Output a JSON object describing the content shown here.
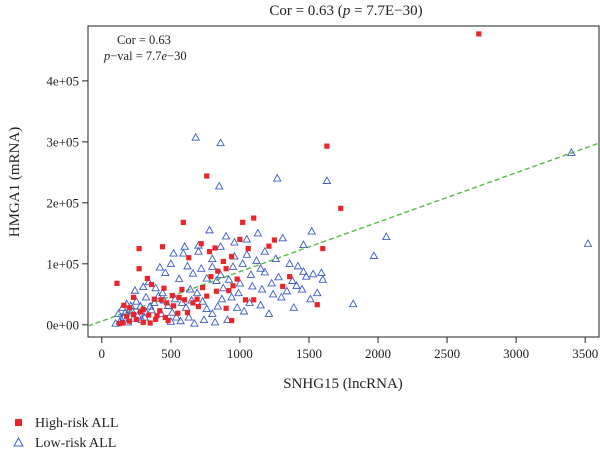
{
  "chart_data": {
    "type": "scatter",
    "title": "Cor = 0.63 (p = 7.7E−30)",
    "title_parts": {
      "prefix": "Cor = 0.63 (",
      "p": "p",
      "suffix": " = 7.7E−30)"
    },
    "annotation": {
      "line1": "Cor = 0.63",
      "line2_p": "p",
      "line2_mid": "−val = 7.7",
      "line2_e": "e",
      "line2_end": "−30"
    },
    "xlabel": "SNHG15 (lncRNA)",
    "ylabel": "HMGA1 (mRNA)",
    "xlim": [
      -100,
      3600
    ],
    "ylim": [
      -20000,
      490000
    ],
    "x_ticks": [
      0,
      500,
      1000,
      1500,
      2000,
      2500,
      3000,
      3500
    ],
    "x_tick_labels": [
      "0",
      "500",
      "1000",
      "1500",
      "2000",
      "2500",
      "3000",
      "3500"
    ],
    "y_ticks": [
      0,
      100000,
      200000,
      300000,
      400000
    ],
    "y_tick_labels": [
      "0e+00",
      "1e+05",
      "2e+05",
      "3e+05",
      "4e+05"
    ],
    "grid": false,
    "legend_position": "bottom-left",
    "trend_line": {
      "x": [
        -100,
        3600
      ],
      "y": [
        -2000,
        298000
      ],
      "color": "#55bb44",
      "style": "dashed"
    },
    "series": [
      {
        "name": "High-risk ALL",
        "marker": "square",
        "color": "#e8262a",
        "points": [
          [
            2730,
            477000
          ],
          [
            760,
            244000
          ],
          [
            1630,
            293000
          ],
          [
            1730,
            191000
          ],
          [
            1100,
            175000
          ],
          [
            1020,
            168000
          ],
          [
            590,
            168000
          ],
          [
            1210,
            129000
          ],
          [
            1600,
            125000
          ],
          [
            1000,
            140000
          ],
          [
            1250,
            139000
          ],
          [
            720,
            133000
          ],
          [
            820,
            126000
          ],
          [
            1060,
            125000
          ],
          [
            780,
            120000
          ],
          [
            940,
            112000
          ],
          [
            630,
            110000
          ],
          [
            880,
            104000
          ],
          [
            270,
            125000
          ],
          [
            440,
            128000
          ],
          [
            1360,
            79000
          ],
          [
            1310,
            63000
          ],
          [
            1040,
            41000
          ],
          [
            1100,
            41000
          ],
          [
            920,
            56000
          ],
          [
            1560,
            33000
          ],
          [
            270,
            92000
          ],
          [
            330,
            76000
          ],
          [
            110,
            68000
          ],
          [
            360,
            66000
          ],
          [
            580,
            58000
          ],
          [
            690,
            42000
          ],
          [
            760,
            47000
          ],
          [
            830,
            55000
          ],
          [
            900,
            27000
          ],
          [
            510,
            48000
          ],
          [
            470,
            36000
          ],
          [
            380,
            42000
          ],
          [
            230,
            45000
          ],
          [
            200,
            28000
          ],
          [
            160,
            32000
          ],
          [
            300,
            25000
          ],
          [
            340,
            16000
          ],
          [
            420,
            23000
          ],
          [
            390,
            9000
          ],
          [
            520,
            31000
          ],
          [
            600,
            41000
          ],
          [
            660,
            36000
          ],
          [
            730,
            61000
          ],
          [
            790,
            79000
          ],
          [
            840,
            88000
          ],
          [
            900,
            92000
          ],
          [
            950,
            64000
          ],
          [
            980,
            75000
          ],
          [
            450,
            60000
          ],
          [
            300,
            4000
          ],
          [
            250,
            9000
          ],
          [
            200,
            6000
          ],
          [
            180,
            14000
          ],
          [
            150,
            3000
          ],
          [
            230,
            17000
          ],
          [
            280,
            21000
          ],
          [
            350,
            3000
          ],
          [
            400,
            15000
          ],
          [
            460,
            12000
          ],
          [
            480,
            7000
          ],
          [
            550,
            19000
          ],
          [
            620,
            20000
          ],
          [
            700,
            30000
          ],
          [
            560,
            45000
          ],
          [
            430,
            41000
          ],
          [
            940,
            7000
          ],
          [
            130,
            2000
          ]
        ]
      },
      {
        "name": "Low-risk ALL",
        "marker": "triangle",
        "color": "#3b5bc8",
        "points": [
          [
            680,
            307000
          ],
          [
            860,
            298000
          ],
          [
            1630,
            236000
          ],
          [
            1270,
            240000
          ],
          [
            3400,
            282000
          ],
          [
            3520,
            133000
          ],
          [
            2060,
            144000
          ],
          [
            1970,
            113000
          ],
          [
            1820,
            34000
          ],
          [
            1590,
            85000
          ],
          [
            1460,
            87000
          ],
          [
            1390,
            28000
          ],
          [
            850,
            227000
          ],
          [
            1520,
            153000
          ],
          [
            1310,
            142000
          ],
          [
            1460,
            131000
          ],
          [
            1130,
            150000
          ],
          [
            1050,
            140000
          ],
          [
            960,
            135000
          ],
          [
            900,
            145000
          ],
          [
            780,
            155000
          ],
          [
            700,
            130000
          ],
          [
            600,
            128000
          ],
          [
            500,
            100000
          ],
          [
            520,
            117000
          ],
          [
            590,
            117000
          ],
          [
            700,
            120000
          ],
          [
            800,
            108000
          ],
          [
            860,
            128000
          ],
          [
            1180,
            120000
          ],
          [
            1260,
            108000
          ],
          [
            1360,
            100000
          ],
          [
            1420,
            96000
          ],
          [
            1480,
            79000
          ],
          [
            1530,
            83000
          ],
          [
            1600,
            74000
          ],
          [
            1120,
            105000
          ],
          [
            1020,
            100000
          ],
          [
            950,
            95000
          ],
          [
            1080,
            82000
          ],
          [
            1180,
            86000
          ],
          [
            1280,
            78000
          ],
          [
            1380,
            72000
          ],
          [
            1450,
            58000
          ],
          [
            1510,
            42000
          ],
          [
            1560,
            52000
          ],
          [
            1230,
            68000
          ],
          [
            1160,
            58000
          ],
          [
            1090,
            63000
          ],
          [
            1000,
            68000
          ],
          [
            940,
            45000
          ],
          [
            880,
            60000
          ],
          [
            830,
            72000
          ],
          [
            760,
            76000
          ],
          [
            660,
            84000
          ],
          [
            560,
            75000
          ],
          [
            460,
            85000
          ],
          [
            390,
            60000
          ],
          [
            320,
            45000
          ],
          [
            250,
            38000
          ],
          [
            200,
            24000
          ],
          [
            160,
            12000
          ],
          [
            130,
            5000
          ],
          [
            100,
            2000
          ],
          [
            120,
            18000
          ],
          [
            150,
            28000
          ],
          [
            180,
            34000
          ],
          [
            220,
            22000
          ],
          [
            260,
            15000
          ],
          [
            290,
            8000
          ],
          [
            320,
            20000
          ],
          [
            350,
            30000
          ],
          [
            380,
            36000
          ],
          [
            410,
            47000
          ],
          [
            440,
            52000
          ],
          [
            480,
            31000
          ],
          [
            510,
            20000
          ],
          [
            540,
            12000
          ],
          [
            570,
            6000
          ],
          [
            610,
            28000
          ],
          [
            650,
            40000
          ],
          [
            690,
            52000
          ],
          [
            730,
            38000
          ],
          [
            760,
            26000
          ],
          [
            800,
            18000
          ],
          [
            840,
            30000
          ],
          [
            870,
            42000
          ],
          [
            910,
            8000
          ],
          [
            980,
            28000
          ],
          [
            1030,
            22000
          ],
          [
            1070,
            36000
          ],
          [
            1150,
            32000
          ],
          [
            1210,
            18000
          ],
          [
            1300,
            45000
          ],
          [
            1340,
            55000
          ],
          [
            1240,
            50000
          ],
          [
            1410,
            64000
          ],
          [
            990,
            52000
          ],
          [
            920,
            74000
          ],
          [
            720,
            92000
          ],
          [
            620,
            96000
          ],
          [
            420,
            94000
          ],
          [
            340,
            70000
          ],
          [
            300,
            62000
          ],
          [
            240,
            56000
          ],
          [
            280,
            30000
          ],
          [
            230,
            10000
          ],
          [
            190,
            4000
          ],
          [
            170,
            20000
          ],
          [
            310,
            12000
          ],
          [
            430,
            18000
          ],
          [
            500,
            5000
          ],
          [
            630,
            12000
          ],
          [
            670,
            2000
          ],
          [
            740,
            8000
          ],
          [
            820,
            4000
          ],
          [
            140,
            9000
          ],
          [
            210,
            31000
          ],
          [
            360,
            24000
          ],
          [
            450,
            40000
          ],
          [
            530,
            42000
          ],
          [
            580,
            36000
          ],
          [
            640,
            58000
          ],
          [
            800,
            95000
          ],
          [
            860,
            82000
          ],
          [
            960,
            112000
          ],
          [
            1050,
            115000
          ],
          [
            1150,
            92000
          ]
        ]
      }
    ]
  }
}
